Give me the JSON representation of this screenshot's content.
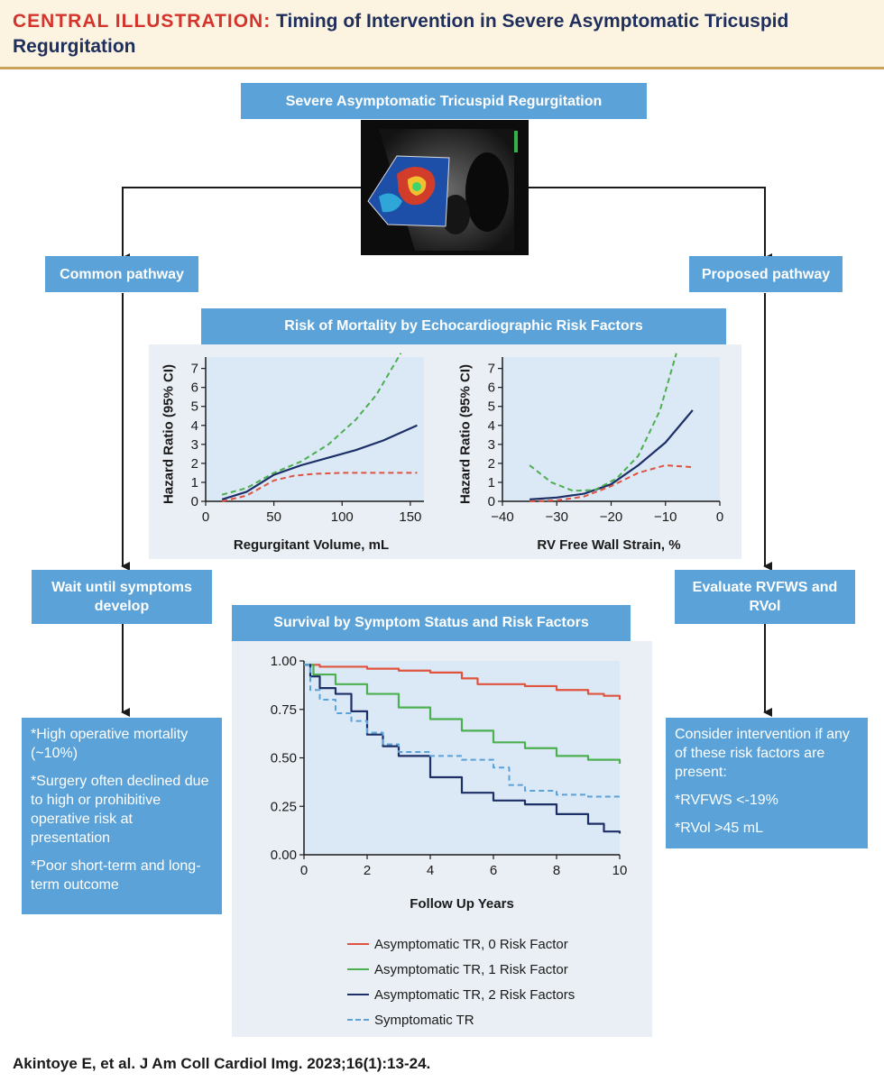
{
  "header": {
    "label": "CENTRAL ILLUSTRATION:",
    "title": "Timing of Intervention in Severe Asymptomatic Tricuspid Regurgitation"
  },
  "top_box": "Severe Asymptomatic Tricuspid Regurgitation",
  "left": {
    "pathway": "Common pathway",
    "step": "Wait until symptoms develop",
    "outcomes": [
      "*High operative mortality (~10%)",
      "*Surgery often declined due to high or prohibitive operative risk at presentation",
      "*Poor short-term and long-term outcome"
    ]
  },
  "right": {
    "pathway": "Proposed pathway",
    "step": "Evaluate RVFWS and RVol",
    "intro": "Consider intervention if any of these risk factors are present:",
    "criteria": [
      "*RVFWS <-19%",
      "*RVol >45 mL"
    ]
  },
  "colors": {
    "box": "#5aa2d8",
    "panel": "#eaeff5",
    "plot_bg": "#dbe8f6",
    "red": "#e0533e",
    "green": "#4caf50",
    "navy": "#1c2f66",
    "lightblue": "#5aa2d8"
  },
  "chart_data": [
    {
      "id": "hr-volume",
      "type": "line",
      "panel_title": "Risk of Mortality by Echocardiographic Risk Factors",
      "xlabel": "Regurgitant Volume, mL",
      "ylabel": "Hazard Ratio (95% CI)",
      "xlim": [
        0,
        160
      ],
      "ylim": [
        0,
        7.6
      ],
      "xticks": [
        0,
        50,
        100,
        150
      ],
      "yticks": [
        0,
        1,
        2,
        3,
        4,
        5,
        6,
        7
      ],
      "series": [
        {
          "name": "Hazard ratio",
          "style": "solid",
          "color": "#1c2f66",
          "x": [
            12,
            30,
            50,
            70,
            90,
            110,
            130,
            155
          ],
          "y": [
            0.1,
            0.5,
            1.4,
            1.9,
            2.3,
            2.7,
            3.2,
            4.0
          ]
        },
        {
          "name": "Upper 95% CI",
          "style": "dashed",
          "color": "#4caf50",
          "x": [
            12,
            30,
            50,
            70,
            90,
            110,
            125,
            143
          ],
          "y": [
            0.35,
            0.7,
            1.5,
            2.1,
            3.0,
            4.3,
            5.6,
            7.8
          ]
        },
        {
          "name": "Lower 95% CI",
          "style": "dashed",
          "color": "#e0533e",
          "x": [
            12,
            30,
            50,
            65,
            80,
            100,
            130,
            155
          ],
          "y": [
            0.0,
            0.3,
            1.1,
            1.35,
            1.45,
            1.5,
            1.5,
            1.5
          ]
        }
      ]
    },
    {
      "id": "hr-strain",
      "type": "line",
      "xlabel": "RV Free Wall Strain, %",
      "ylabel": "Hazard Ratio (95% CI)",
      "xlim": [
        -40,
        0
      ],
      "ylim": [
        0,
        7.6
      ],
      "xticks": [
        -40,
        -30,
        -20,
        -10,
        0
      ],
      "yticks": [
        0,
        1,
        2,
        3,
        4,
        5,
        6,
        7
      ],
      "series": [
        {
          "name": "Hazard ratio",
          "style": "solid",
          "color": "#1c2f66",
          "x": [
            -35,
            -30,
            -25,
            -20,
            -15,
            -10,
            -5
          ],
          "y": [
            0.1,
            0.2,
            0.4,
            0.9,
            1.9,
            3.1,
            4.8
          ]
        },
        {
          "name": "Upper 95% CI",
          "style": "dashed",
          "color": "#4caf50",
          "x": [
            -35,
            -31,
            -27,
            -23,
            -19,
            -15,
            -11,
            -8
          ],
          "y": [
            1.9,
            1.0,
            0.55,
            0.6,
            1.2,
            2.4,
            4.8,
            7.8
          ]
        },
        {
          "name": "Lower 95% CI",
          "style": "dashed",
          "color": "#e0533e",
          "x": [
            -35,
            -30,
            -25,
            -20,
            -15,
            -10,
            -5
          ],
          "y": [
            0.0,
            0.05,
            0.25,
            0.8,
            1.5,
            1.9,
            1.8
          ]
        }
      ]
    },
    {
      "id": "survival",
      "type": "line",
      "panel_title": "Survival by Symptom Status and Risk Factors",
      "xlabel": "Follow Up Years",
      "xlim": [
        0,
        10
      ],
      "ylim": [
        0,
        1.0
      ],
      "xticks": [
        0,
        2,
        4,
        6,
        8,
        10
      ],
      "yticks": [
        0.0,
        0.25,
        0.5,
        0.75,
        1.0
      ],
      "ytick_labels": [
        "0.00",
        "0.25",
        "0.50",
        "0.75",
        "1.00"
      ],
      "series": [
        {
          "name": "Asymptomatic TR, 0 Risk Factor",
          "style": "solid",
          "color": "#e0533e",
          "x": [
            0,
            0.5,
            1,
            2,
            3,
            4,
            5,
            5.5,
            6,
            7,
            8,
            9,
            9.5,
            10
          ],
          "y": [
            0.98,
            0.97,
            0.97,
            0.96,
            0.95,
            0.94,
            0.91,
            0.88,
            0.88,
            0.87,
            0.85,
            0.83,
            0.82,
            0.8
          ]
        },
        {
          "name": "Asymptomatic TR, 1 Risk Factor",
          "style": "solid",
          "color": "#4caf50",
          "x": [
            0,
            0.3,
            1,
            2,
            3,
            4,
            5,
            6,
            7,
            8,
            9,
            10
          ],
          "y": [
            0.98,
            0.93,
            0.88,
            0.83,
            0.76,
            0.7,
            0.64,
            0.58,
            0.55,
            0.51,
            0.49,
            0.47
          ]
        },
        {
          "name": "Asymptomatic TR, 2 Risk Factors",
          "style": "solid",
          "color": "#1c2f66",
          "x": [
            0,
            0.2,
            0.5,
            1,
            1.5,
            2,
            2.5,
            3,
            4,
            5,
            6,
            7,
            8,
            9,
            9.5,
            10
          ],
          "y": [
            0.98,
            0.92,
            0.86,
            0.83,
            0.74,
            0.62,
            0.56,
            0.51,
            0.4,
            0.32,
            0.28,
            0.26,
            0.21,
            0.16,
            0.12,
            0.11
          ]
        },
        {
          "name": "Symptomatic TR",
          "style": "dashed",
          "color": "#5aa2d8",
          "x": [
            0,
            0.2,
            0.5,
            1,
            1.5,
            2,
            2.5,
            3,
            4,
            5,
            6,
            6.5,
            7,
            8,
            9,
            10
          ],
          "y": [
            0.98,
            0.85,
            0.8,
            0.73,
            0.69,
            0.63,
            0.57,
            0.53,
            0.51,
            0.49,
            0.45,
            0.36,
            0.33,
            0.31,
            0.3,
            0.3
          ]
        }
      ]
    }
  ],
  "citation": "Akintoye E, et al. J Am Coll Cardiol Img. 2023;16(1):13-24."
}
